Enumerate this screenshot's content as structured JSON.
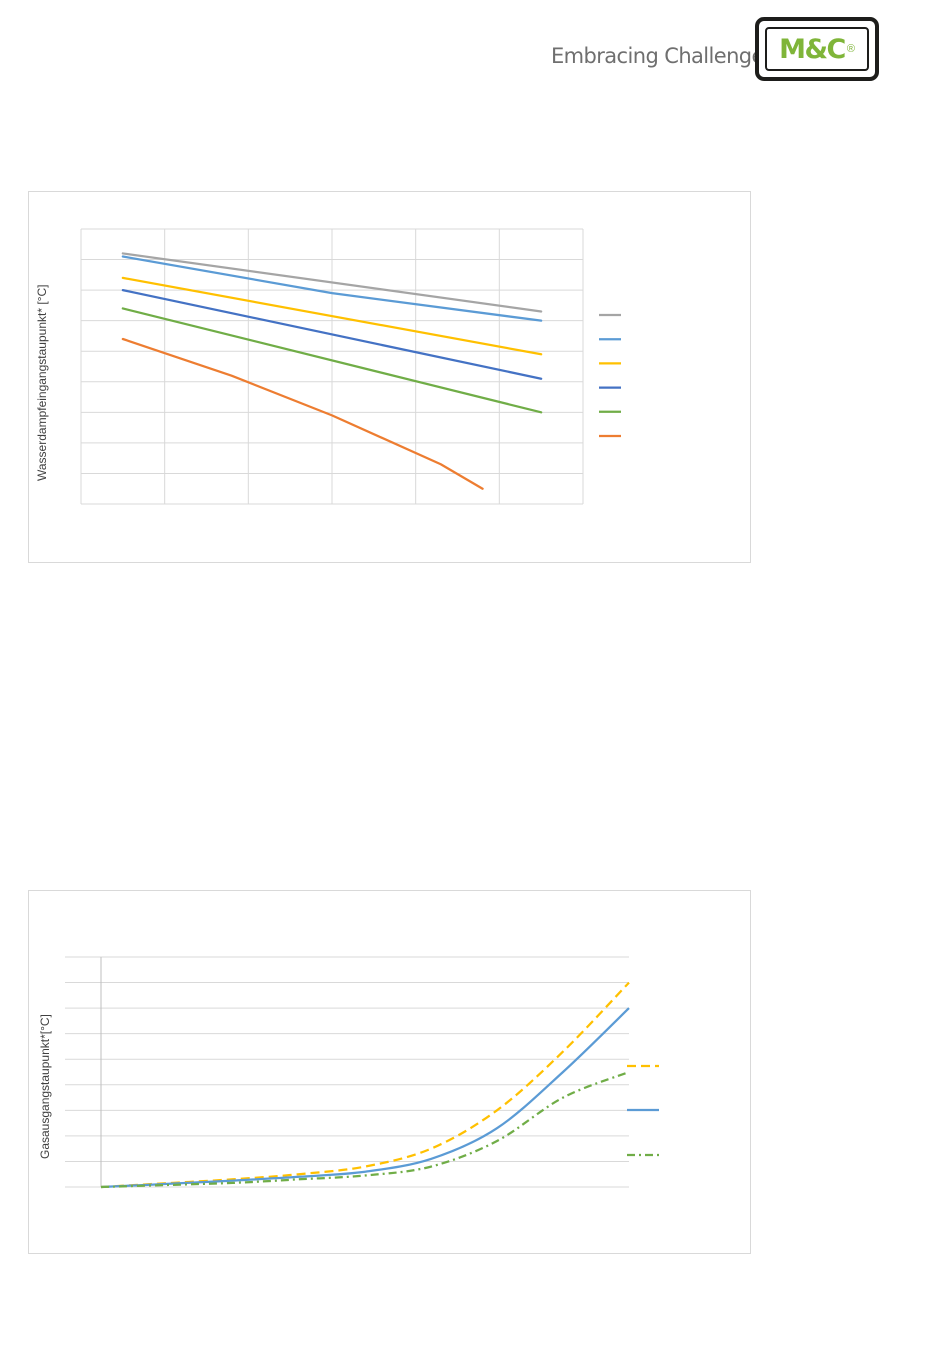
{
  "header": {
    "tagline": "Embracing Challenge",
    "logo_text": "M&C",
    "logo_reg": "®",
    "logo_color": "#7fb539"
  },
  "chart_data": [
    {
      "type": "line",
      "ylabel": "Wasserdampfeingangstaupunkt* [°C]",
      "x_gridlines": 6,
      "y_gridlines": 9,
      "grid": true,
      "legend_position": "right",
      "series": [
        {
          "color": "#a5a5a5",
          "points": [
            [
              0.5,
              8.2
            ],
            [
              5.5,
              6.3
            ]
          ]
        },
        {
          "color": "#5b9bd5",
          "points": [
            [
              0.5,
              8.1
            ],
            [
              3.0,
              6.9
            ],
            [
              5.5,
              6.0
            ]
          ]
        },
        {
          "color": "#ffc000",
          "points": [
            [
              0.5,
              7.4
            ],
            [
              5.5,
              4.9
            ]
          ]
        },
        {
          "color": "#4472c4",
          "points": [
            [
              0.5,
              7.0
            ],
            [
              5.5,
              4.1
            ]
          ]
        },
        {
          "color": "#70ad47",
          "points": [
            [
              0.5,
              6.4
            ],
            [
              5.5,
              3.0
            ]
          ]
        },
        {
          "color": "#ed7d31",
          "points": [
            [
              0.5,
              5.4
            ],
            [
              1.8,
              4.2
            ],
            [
              3.0,
              2.9
            ],
            [
              4.3,
              1.3
            ],
            [
              4.8,
              0.5
            ]
          ]
        }
      ]
    },
    {
      "type": "line",
      "ylabel": "Gasausgangstaupunkt*[°C]",
      "y_gridlines": 9,
      "grid": true,
      "legend_position": "right",
      "series": [
        {
          "color": "#ffc000",
          "dash": "dashed",
          "points": [
            [
              0,
              0
            ],
            [
              1,
              0.15
            ],
            [
              2,
              0.3
            ],
            [
              3,
              0.5
            ],
            [
              4,
              0.8
            ],
            [
              5,
              1.5
            ],
            [
              6,
              3.0
            ],
            [
              7,
              5.3
            ],
            [
              8,
              8.0
            ]
          ]
        },
        {
          "color": "#5b9bd5",
          "dash": "solid",
          "points": [
            [
              0,
              0
            ],
            [
              1,
              0.12
            ],
            [
              2,
              0.25
            ],
            [
              3,
              0.4
            ],
            [
              4,
              0.6
            ],
            [
              5,
              1.1
            ],
            [
              6,
              2.3
            ],
            [
              7,
              4.5
            ],
            [
              8,
              7.0
            ]
          ]
        },
        {
          "color": "#70ad47",
          "dash": "dash-dot",
          "points": [
            [
              0,
              0
            ],
            [
              1,
              0.08
            ],
            [
              2,
              0.16
            ],
            [
              3,
              0.3
            ],
            [
              4,
              0.45
            ],
            [
              5,
              0.8
            ],
            [
              6,
              1.8
            ],
            [
              7,
              3.5
            ],
            [
              8,
              4.5
            ]
          ]
        }
      ]
    }
  ]
}
